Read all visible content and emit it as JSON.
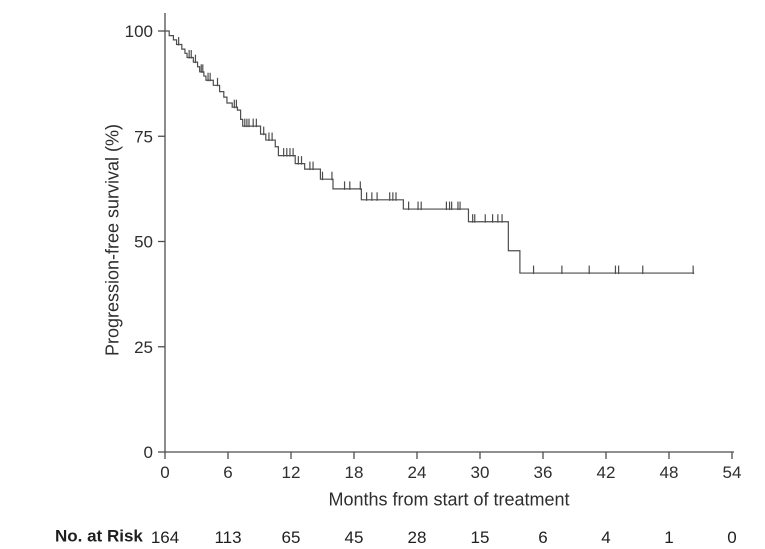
{
  "chart_data": {
    "type": "line",
    "subtype": "kaplan-meier-step-curve",
    "title": "",
    "xlabel": "Months from start of treatment",
    "ylabel": "Progression-free survival (%)",
    "xlim": [
      0,
      54
    ],
    "ylim": [
      0,
      100
    ],
    "x_ticks": [
      0,
      6,
      12,
      18,
      24,
      30,
      36,
      42,
      48,
      54
    ],
    "y_ticks": [
      0,
      25,
      50,
      75,
      100
    ],
    "grid": false,
    "legend": "none",
    "line_color": "#4d4d4d",
    "axis_color": "#4d4d4d",
    "text_color": "#2e2e2e",
    "series": [
      {
        "name": "Progression-free survival",
        "steps": [
          [
            0,
            100
          ],
          [
            0.4,
            98.9
          ],
          [
            0.8,
            97.9
          ],
          [
            1.1,
            96.8
          ],
          [
            1.6,
            95.7
          ],
          [
            1.9,
            94.7
          ],
          [
            2.1,
            93.7
          ],
          [
            2.7,
            92.6
          ],
          [
            3.1,
            91.5
          ],
          [
            3.3,
            90.3
          ],
          [
            3.7,
            89.3
          ],
          [
            3.9,
            88.3
          ],
          [
            4.6,
            87.1
          ],
          [
            5.2,
            85.6
          ],
          [
            5.6,
            84.3
          ],
          [
            5.9,
            82.9
          ],
          [
            6.4,
            81.9
          ],
          [
            6.9,
            81.2
          ],
          [
            7.2,
            79.0
          ],
          [
            7.4,
            77.4
          ],
          [
            9.1,
            75.5
          ],
          [
            9.6,
            74.1
          ],
          [
            10.5,
            72.5
          ],
          [
            10.8,
            70.4
          ],
          [
            12.4,
            68.5
          ],
          [
            13.3,
            67.2
          ],
          [
            14.8,
            64.8
          ],
          [
            16.0,
            62.5
          ],
          [
            18.7,
            59.9
          ],
          [
            22.7,
            57.7
          ],
          [
            28.9,
            54.7
          ],
          [
            32.7,
            47.8
          ],
          [
            33.8,
            42.5
          ]
        ],
        "end_month": 50.4,
        "censor_marks": [
          [
            1.3,
            96.8
          ],
          [
            2.3,
            93.7
          ],
          [
            2.5,
            93.7
          ],
          [
            2.9,
            92.6
          ],
          [
            3.45,
            90.3
          ],
          [
            3.6,
            90.3
          ],
          [
            4.1,
            88.3
          ],
          [
            4.3,
            88.3
          ],
          [
            5.0,
            87.1
          ],
          [
            6.6,
            81.9
          ],
          [
            6.8,
            81.9
          ],
          [
            7.6,
            77.4
          ],
          [
            7.8,
            77.4
          ],
          [
            8.0,
            77.4
          ],
          [
            8.4,
            77.4
          ],
          [
            8.7,
            77.4
          ],
          [
            9.4,
            75.5
          ],
          [
            9.9,
            74.1
          ],
          [
            10.2,
            74.1
          ],
          [
            11.3,
            70.4
          ],
          [
            11.6,
            70.4
          ],
          [
            11.9,
            70.4
          ],
          [
            12.2,
            70.4
          ],
          [
            12.7,
            68.5
          ],
          [
            13.0,
            68.5
          ],
          [
            13.8,
            67.2
          ],
          [
            14.1,
            67.2
          ],
          [
            15.0,
            64.8
          ],
          [
            15.9,
            64.8
          ],
          [
            17.1,
            62.5
          ],
          [
            17.6,
            62.5
          ],
          [
            18.6,
            62.5
          ],
          [
            19.2,
            59.9
          ],
          [
            19.7,
            59.9
          ],
          [
            20.2,
            59.9
          ],
          [
            21.4,
            59.9
          ],
          [
            21.7,
            59.9
          ],
          [
            22.0,
            59.9
          ],
          [
            23.2,
            57.7
          ],
          [
            24.1,
            57.7
          ],
          [
            24.4,
            57.7
          ],
          [
            26.8,
            57.7
          ],
          [
            27.1,
            57.7
          ],
          [
            27.3,
            57.7
          ],
          [
            27.9,
            57.7
          ],
          [
            28.1,
            57.7
          ],
          [
            29.3,
            54.7
          ],
          [
            29.5,
            54.7
          ],
          [
            30.5,
            54.7
          ],
          [
            31.2,
            54.7
          ],
          [
            31.7,
            54.7
          ],
          [
            32.1,
            54.7
          ],
          [
            35.1,
            42.5
          ],
          [
            37.8,
            42.5
          ],
          [
            40.4,
            42.5
          ],
          [
            42.9,
            42.5
          ],
          [
            43.2,
            42.5
          ],
          [
            45.5,
            42.5
          ],
          [
            50.3,
            42.5
          ]
        ]
      }
    ],
    "risk_table": {
      "label": "No. at Risk",
      "months": [
        0,
        6,
        12,
        18,
        24,
        30,
        36,
        42,
        48,
        54
      ],
      "counts": [
        164,
        113,
        65,
        45,
        28,
        15,
        6,
        4,
        1,
        0
      ]
    }
  }
}
